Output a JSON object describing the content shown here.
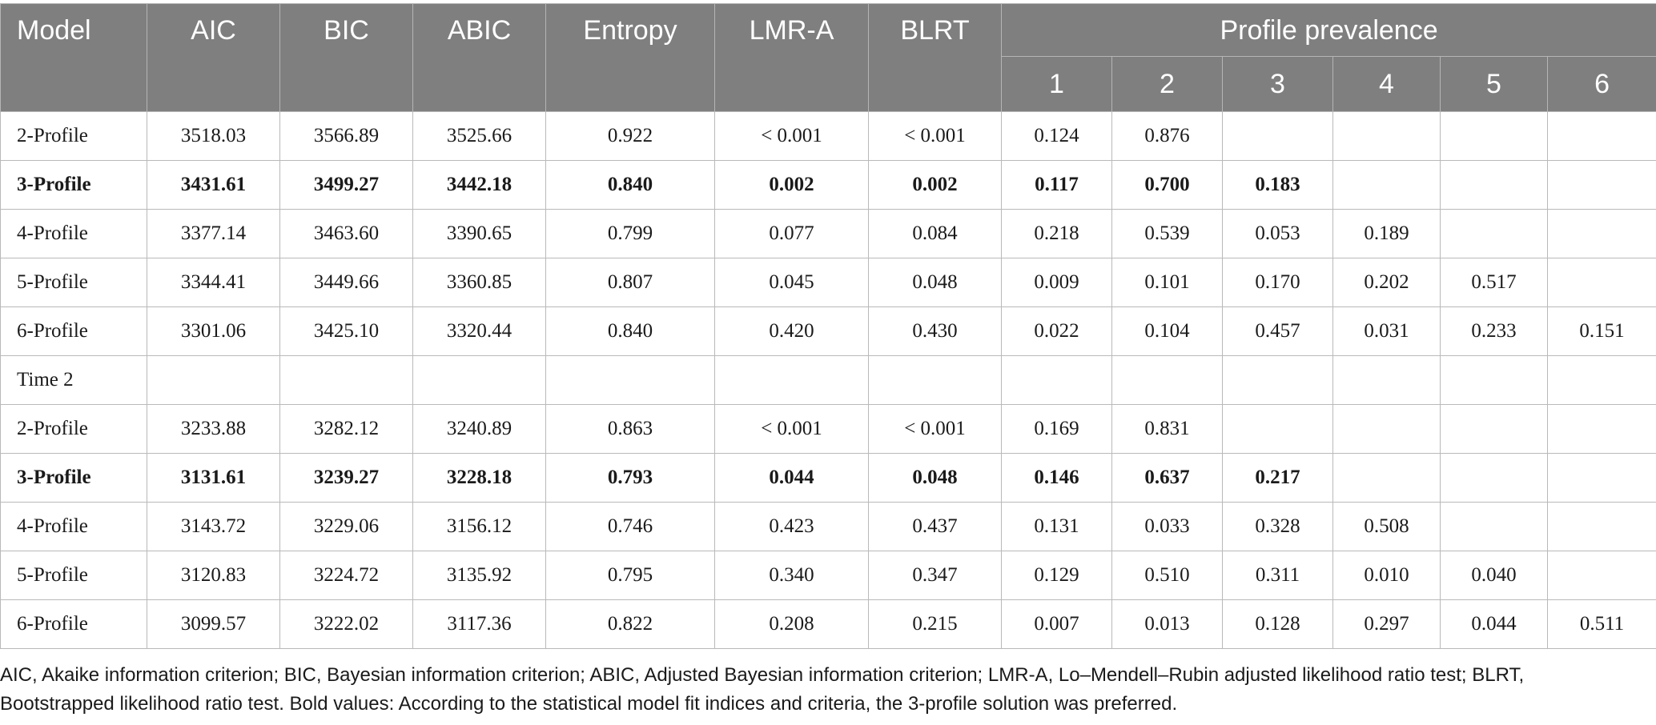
{
  "table": {
    "headers": {
      "model": "Model",
      "aic": "AIC",
      "bic": "BIC",
      "abic": "ABIC",
      "entropy": "Entropy",
      "lmr": "LMR-A",
      "blrt": "BLRT",
      "prevalence": "Profile prevalence",
      "profiles": [
        "1",
        "2",
        "3",
        "4",
        "5",
        "6"
      ]
    },
    "rows": [
      {
        "cells": [
          "2-Profile",
          "3518.03",
          "3566.89",
          "3525.66",
          "0.922",
          "< 0.001",
          "< 0.001",
          "0.124",
          "0.876",
          "",
          "",
          "",
          ""
        ],
        "bold": false
      },
      {
        "cells": [
          "3-Profile",
          "3431.61",
          "3499.27",
          "3442.18",
          "0.840",
          "0.002",
          "0.002",
          "0.117",
          "0.700",
          "0.183",
          "",
          "",
          ""
        ],
        "bold": true
      },
      {
        "cells": [
          "4-Profile",
          "3377.14",
          "3463.60",
          "3390.65",
          "0.799",
          "0.077",
          "0.084",
          "0.218",
          "0.539",
          "0.053",
          "0.189",
          "",
          ""
        ],
        "bold": false
      },
      {
        "cells": [
          "5-Profile",
          "3344.41",
          "3449.66",
          "3360.85",
          "0.807",
          "0.045",
          "0.048",
          "0.009",
          "0.101",
          "0.170",
          "0.202",
          "0.517",
          ""
        ],
        "bold": false
      },
      {
        "cells": [
          "6-Profile",
          "3301.06",
          "3425.10",
          "3320.44",
          "0.840",
          "0.420",
          "0.430",
          "0.022",
          "0.104",
          "0.457",
          "0.031",
          "0.233",
          "0.151"
        ],
        "bold": false
      },
      {
        "cells": [
          "Time 2",
          "",
          "",
          "",
          "",
          "",
          "",
          "",
          "",
          "",
          "",
          "",
          ""
        ],
        "bold": false
      },
      {
        "cells": [
          "2-Profile",
          "3233.88",
          "3282.12",
          "3240.89",
          "0.863",
          "< 0.001",
          "< 0.001",
          "0.169",
          "0.831",
          "",
          "",
          "",
          ""
        ],
        "bold": false
      },
      {
        "cells": [
          "3-Profile",
          "3131.61",
          "3239.27",
          "3228.18",
          "0.793",
          "0.044",
          "0.048",
          "0.146",
          "0.637",
          "0.217",
          "",
          "",
          ""
        ],
        "bold": true
      },
      {
        "cells": [
          "4-Profile",
          "3143.72",
          "3229.06",
          "3156.12",
          "0.746",
          "0.423",
          "0.437",
          "0.131",
          "0.033",
          "0.328",
          "0.508",
          "",
          ""
        ],
        "bold": false
      },
      {
        "cells": [
          "5-Profile",
          "3120.83",
          "3224.72",
          "3135.92",
          "0.795",
          "0.340",
          "0.347",
          "0.129",
          "0.510",
          "0.311",
          "0.010",
          "0.040",
          ""
        ],
        "bold": false
      },
      {
        "cells": [
          "6-Profile",
          "3099.57",
          "3222.02",
          "3117.36",
          "0.822",
          "0.208",
          "0.215",
          "0.007",
          "0.013",
          "0.128",
          "0.297",
          "0.044",
          "0.511"
        ],
        "bold": false
      }
    ]
  },
  "footnote": "AIC, Akaike information criterion; BIC, Bayesian information criterion; ABIC, Adjusted Bayesian information criterion; LMR-A, Lo–Mendell–Rubin adjusted likelihood ratio test; BLRT, Bootstrapped likelihood ratio test. Bold values: According to the statistical model fit indices and criteria, the 3-profile solution was preferred."
}
